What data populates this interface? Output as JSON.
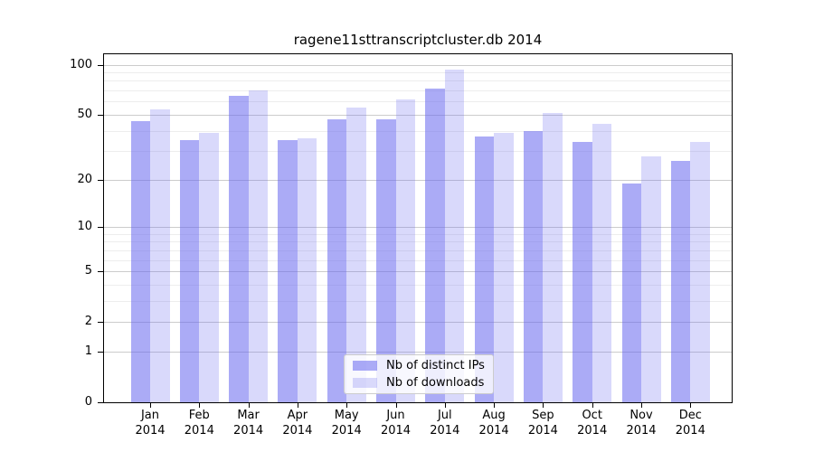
{
  "chart_data": {
    "type": "bar",
    "title": "ragene11sttranscriptcluster.db 2014",
    "categories": [
      "Jan 2014",
      "Feb 2014",
      "Mar 2014",
      "Apr 2014",
      "May 2014",
      "Jun 2014",
      "Jul 2014",
      "Aug 2014",
      "Sep 2014",
      "Oct 2014",
      "Nov 2014",
      "Dec 2014"
    ],
    "series": [
      {
        "name": "Nb of distinct IPs",
        "color": "rgba(102,102,238,0.55)",
        "values": [
          46,
          35,
          65,
          35,
          47,
          47,
          72,
          37,
          40,
          34,
          19,
          26
        ]
      },
      {
        "name": "Nb of downloads",
        "color": "rgba(102,102,238,0.25)",
        "values": [
          54,
          39,
          70,
          36,
          55,
          62,
          94,
          39,
          51,
          44,
          28,
          34
        ]
      }
    ],
    "xlabel": "",
    "ylabel": "",
    "yscale": "log1p",
    "ylim": [
      0,
      119
    ],
    "y_ticks": [
      0,
      1,
      2,
      5,
      10,
      20,
      50,
      100
    ],
    "minor_ticks": [
      3,
      4,
      6,
      7,
      8,
      9,
      30,
      40,
      60,
      70,
      80,
      90
    ],
    "grid": true,
    "legend_position": "lower center"
  },
  "colors": {
    "major_grid": "#cccccc",
    "minor_grid": "#ededed",
    "axis": "#000000",
    "background": "#ffffff"
  }
}
